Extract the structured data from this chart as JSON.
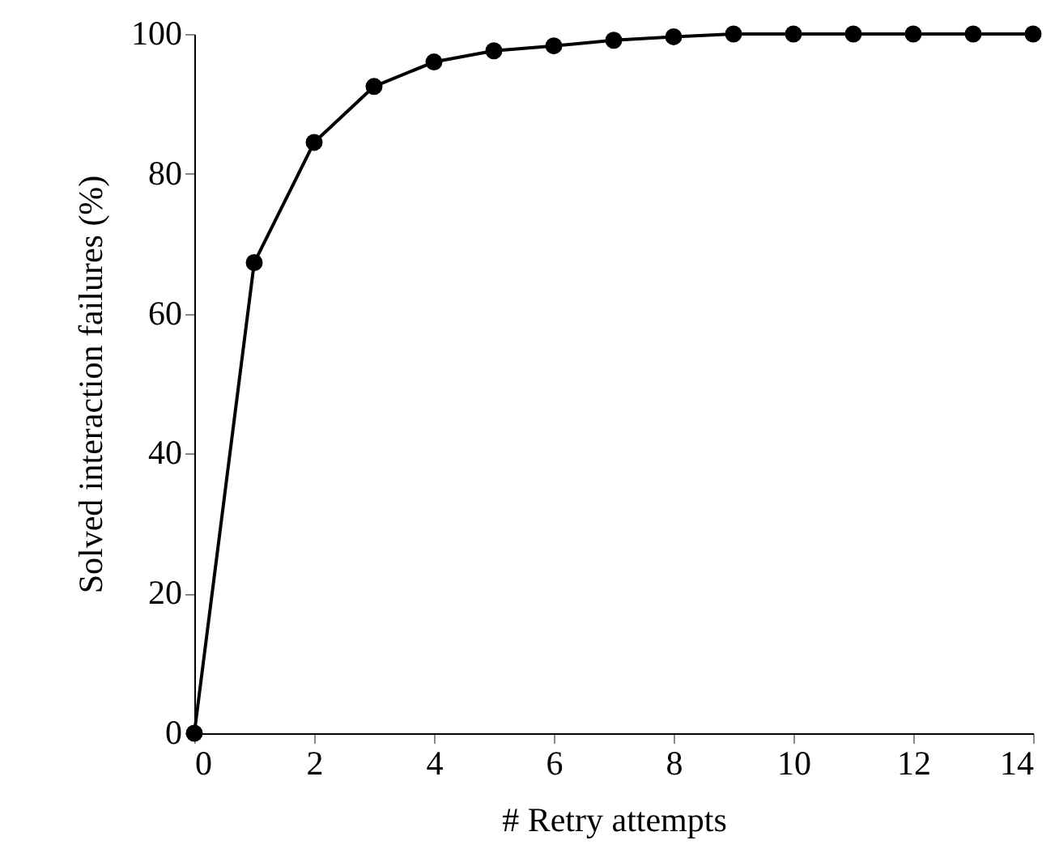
{
  "chart_data": {
    "type": "line",
    "xlabel": "# Retry attempts",
    "ylabel": "Solved interaction failures (%)",
    "x": [
      0,
      1,
      2,
      3,
      4,
      5,
      6,
      7,
      8,
      9,
      10,
      11,
      12,
      13,
      14
    ],
    "series": [
      {
        "color": "#000000",
        "values": [
          0,
          67.3,
          84.5,
          92.5,
          96.0,
          97.6,
          98.3,
          99.1,
          99.6,
          100,
          100,
          100,
          100,
          100,
          100
        ]
      }
    ],
    "xlim": [
      0,
      14
    ],
    "xticks": [
      0,
      2,
      4,
      6,
      8,
      10,
      12,
      14
    ],
    "ylim": [
      0,
      100
    ],
    "yticks": [
      0,
      20,
      40,
      60,
      80,
      100
    ],
    "marker": "circle",
    "line_style": "solid"
  }
}
